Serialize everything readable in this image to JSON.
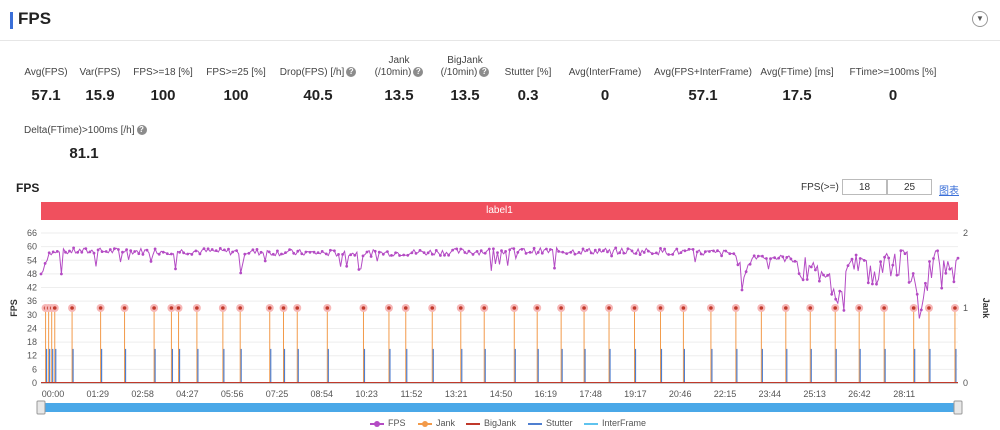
{
  "header": {
    "title": "FPS",
    "collapse_icon": "chevron-down-icon"
  },
  "stats": [
    {
      "label": "Avg(FPS)",
      "value": "57.1",
      "help": false
    },
    {
      "label": "Var(FPS)",
      "value": "15.9",
      "help": false
    },
    {
      "label": "FPS>=18 [%]",
      "value": "100",
      "help": false
    },
    {
      "label": "FPS>=25 [%]",
      "value": "100",
      "help": false
    },
    {
      "label": "Drop(FPS) [/h]",
      "value": "40.5",
      "help": true
    },
    {
      "label": "Jank",
      "label2": "(/10min)",
      "value": "13.5",
      "help": true
    },
    {
      "label": "BigJank",
      "label2": "(/10min)",
      "value": "13.5",
      "help": true
    },
    {
      "label": "Stutter [%]",
      "value": "0.3",
      "help": false
    },
    {
      "label": "Avg(InterFrame)",
      "value": "0",
      "help": false
    },
    {
      "label": "Avg(FPS+InterFrame)",
      "value": "57.1",
      "help": false
    },
    {
      "label": "Avg(FTime) [ms]",
      "value": "17.5",
      "help": false
    },
    {
      "label": "FTime>=100ms [%]",
      "value": "0",
      "help": false
    },
    {
      "label": "Delta(FTime)>100ms [/h]",
      "value": "81.1",
      "help": true
    }
  ],
  "chart": {
    "title": "FPS",
    "threshold_label": "FPS(>=)",
    "threshold_low": "18",
    "threshold_high": "25",
    "link_label": "图表",
    "band_label": "label1",
    "legend": [
      {
        "name": "FPS",
        "color": "#b44bc4"
      },
      {
        "name": "Jank",
        "color": "#f29a4a"
      },
      {
        "name": "BigJank",
        "color": "#c0392b"
      },
      {
        "name": "Stutter",
        "color": "#4f7fd0"
      },
      {
        "name": "InterFrame",
        "color": "#5ec3ee"
      }
    ]
  },
  "chart_data": {
    "type": "line",
    "x_ticks": [
      "00:00",
      "01:29",
      "02:58",
      "04:27",
      "05:56",
      "07:25",
      "08:54",
      "10:23",
      "11:52",
      "13:21",
      "14:50",
      "16:19",
      "17:48",
      "19:17",
      "20:46",
      "22:15",
      "23:44",
      "25:13",
      "26:42",
      "28:11"
    ],
    "x_range_seconds": [
      0,
      1800
    ],
    "ylabel": "FPS",
    "y_ticks": [
      0,
      6,
      12,
      18,
      24,
      30,
      36,
      42,
      48,
      54,
      60,
      66
    ],
    "ylim": [
      0,
      66
    ],
    "y2label": "Jank",
    "y2_ticks": [
      0,
      1,
      2
    ],
    "y2lim": [
      0,
      2
    ],
    "fps_profile": [
      [
        0,
        48
      ],
      [
        15,
        57
      ],
      [
        60,
        58
      ],
      [
        300,
        58
      ],
      [
        600,
        57
      ],
      [
        900,
        58
      ],
      [
        1200,
        58
      ],
      [
        1360,
        57
      ],
      [
        1380,
        48
      ],
      [
        1400,
        56
      ],
      [
        1500,
        54
      ],
      [
        1560,
        45
      ],
      [
        1600,
        55
      ],
      [
        1640,
        50
      ],
      [
        1660,
        56
      ],
      [
        1700,
        58
      ],
      [
        1720,
        40
      ],
      [
        1730,
        35
      ],
      [
        1740,
        52
      ],
      [
        1760,
        58
      ],
      [
        1790,
        50
      ],
      [
        1800,
        55
      ]
    ],
    "jank_times_seconds": [
      9,
      15,
      21,
      27,
      61,
      117,
      164,
      222,
      256,
      270,
      306,
      357,
      391,
      449,
      476,
      503,
      562,
      633,
      683,
      716,
      768,
      824,
      870,
      929,
      974,
      1021,
      1066,
      1115,
      1165,
      1216,
      1261,
      1315,
      1364,
      1414,
      1462,
      1510,
      1559,
      1606,
      1655,
      1713,
      1743,
      1794
    ],
    "jank_value": 1,
    "bigjank_value": 1,
    "stutter_value": 15
  }
}
